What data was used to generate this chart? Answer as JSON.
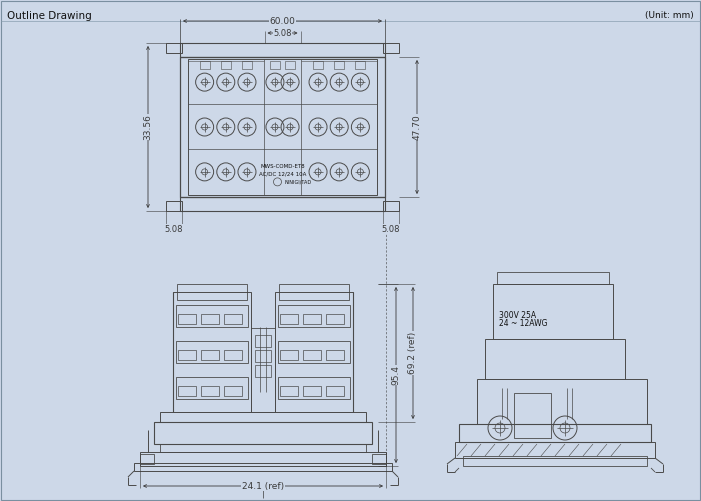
{
  "title": "Outline Drawing",
  "unit_label": "(Unit: mm)",
  "bg_color": "#cdd8e8",
  "line_color": "#4a4a4a",
  "dim_color": "#3a3a3a",
  "text_color": "#111111",
  "top_view": {
    "dim_top": "60.00",
    "dim_top_sub": "5.08",
    "dim_right": "47.70",
    "dim_left": "33.56",
    "dim_bot_left": "5.08",
    "dim_bot_right": "5.08",
    "label1": "MWS-COMD-ET8",
    "label2": "AC/DC 12/24 10A",
    "logo": "NINIGI/TAD"
  },
  "front_view": {
    "dim_right_total": "69.2 (ref)",
    "dim_right_sub": "95.4",
    "dim_bot": "24.1 (ref)"
  },
  "side_view": {
    "label1": "300V 25A",
    "label2": "24 ~ 12AWG"
  }
}
